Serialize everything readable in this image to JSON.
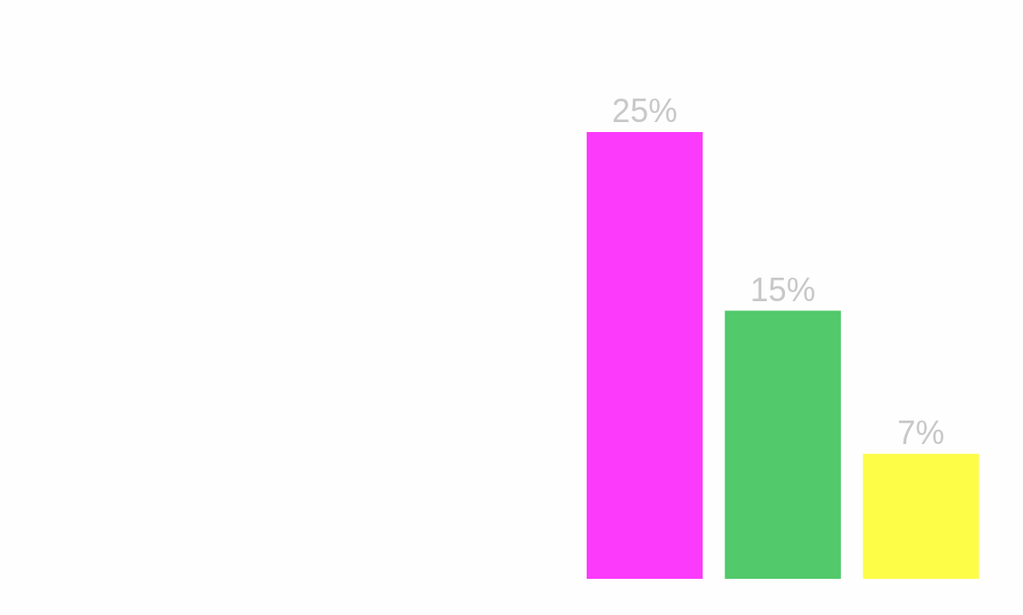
{
  "chart_data": {
    "type": "bar",
    "categories": [
      null,
      null,
      null
    ],
    "values": [
      25,
      15,
      7
    ],
    "colors": [
      "#fc3afc",
      "#52c96a",
      "#fdfd48"
    ],
    "value_labels": [
      "25%",
      "15%",
      "7%"
    ]
  }
}
